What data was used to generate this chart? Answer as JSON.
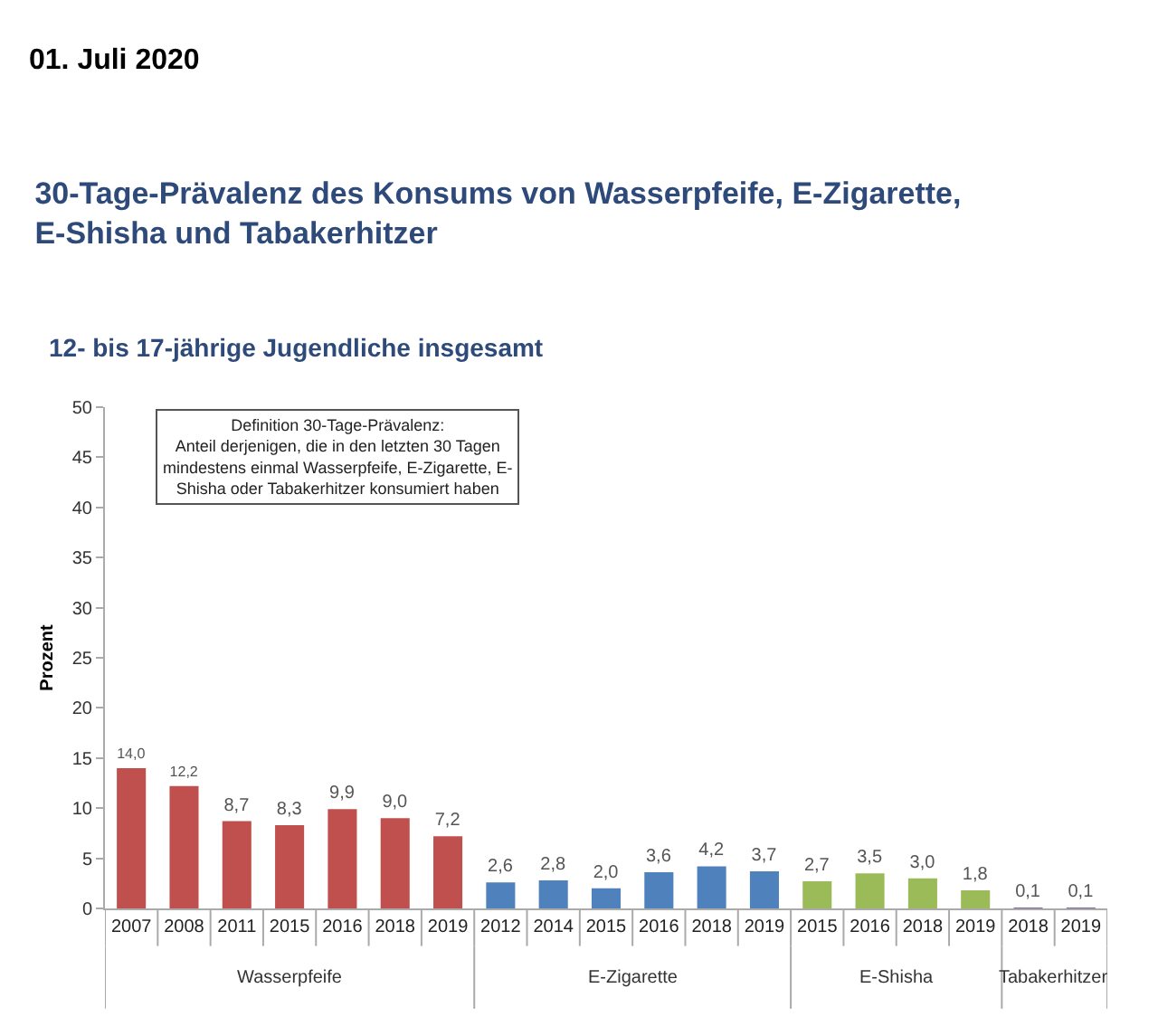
{
  "chart_data": {
    "type": "bar",
    "title": "30-Tage-Prävalenz des Konsums von Wasserpfeife, E-Zigarette,\nE-Shisha und Tabakerhitzer",
    "subtitle": "12- bis 17-jährige Jugendliche insgesamt",
    "ylabel": "Prozent",
    "annotations": [
      "01. Juli 2020",
      "Definition 30-Tage-Prävalenz:\nAnteil derjenigen, die in den letzten 30 Tagen\nmindestens einmal Wasserpfeife, E-Zigarette, E-\nShisha oder Tabakerhitzer konsumiert haben"
    ],
    "categories": [
      "2007",
      "2008",
      "2011",
      "2015",
      "2016",
      "2018",
      "2019",
      "2012",
      "2014",
      "2015",
      "2016",
      "2018",
      "2019",
      "2015",
      "2016",
      "2018",
      "2019",
      "2018",
      "2019"
    ],
    "series": [
      {
        "name": "Wasserpfeife",
        "color": "#c0504d",
        "values": [
          14.0,
          12.2,
          8.7,
          8.3,
          9.9,
          9.0,
          7.2,
          null,
          null,
          null,
          null,
          null,
          null,
          null,
          null,
          null,
          null,
          null,
          null
        ],
        "value_labels": [
          "14,0",
          "12,2",
          "8,7",
          "8,3",
          "9,9",
          "9,0",
          "7,2",
          null,
          null,
          null,
          null,
          null,
          null,
          null,
          null,
          null,
          null,
          null,
          null
        ]
      },
      {
        "name": "E-Zigarette",
        "color": "#4f81bd",
        "values": [
          null,
          null,
          null,
          null,
          null,
          null,
          null,
          2.6,
          2.8,
          2.0,
          3.6,
          4.2,
          3.7,
          null,
          null,
          null,
          null,
          null,
          null
        ],
        "value_labels": [
          null,
          null,
          null,
          null,
          null,
          null,
          null,
          "2,6",
          "2,8",
          "2,0",
          "3,6",
          "4,2",
          "3,7",
          null,
          null,
          null,
          null,
          null,
          null
        ]
      },
      {
        "name": "E-Shisha",
        "color": "#9bbb59",
        "values": [
          null,
          null,
          null,
          null,
          null,
          null,
          null,
          null,
          null,
          null,
          null,
          null,
          null,
          2.7,
          3.5,
          3.0,
          1.8,
          null,
          null
        ],
        "value_labels": [
          null,
          null,
          null,
          null,
          null,
          null,
          null,
          null,
          null,
          null,
          null,
          null,
          null,
          "2,7",
          "3,5",
          "3,0",
          "1,8",
          null,
          null
        ]
      },
      {
        "name": "Tabakerhitzer",
        "color": "#8064a2",
        "values": [
          null,
          null,
          null,
          null,
          null,
          null,
          null,
          null,
          null,
          null,
          null,
          null,
          null,
          null,
          null,
          null,
          null,
          0.1,
          0.1
        ],
        "value_labels": [
          null,
          null,
          null,
          null,
          null,
          null,
          null,
          null,
          null,
          null,
          null,
          null,
          null,
          null,
          null,
          null,
          null,
          "0,1",
          "0,1"
        ]
      }
    ],
    "ylim": [
      0,
      50
    ],
    "yticks": [
      0,
      5,
      10,
      15,
      20,
      25,
      30,
      35,
      40,
      45,
      50
    ],
    "grid": false,
    "legend": false
  }
}
